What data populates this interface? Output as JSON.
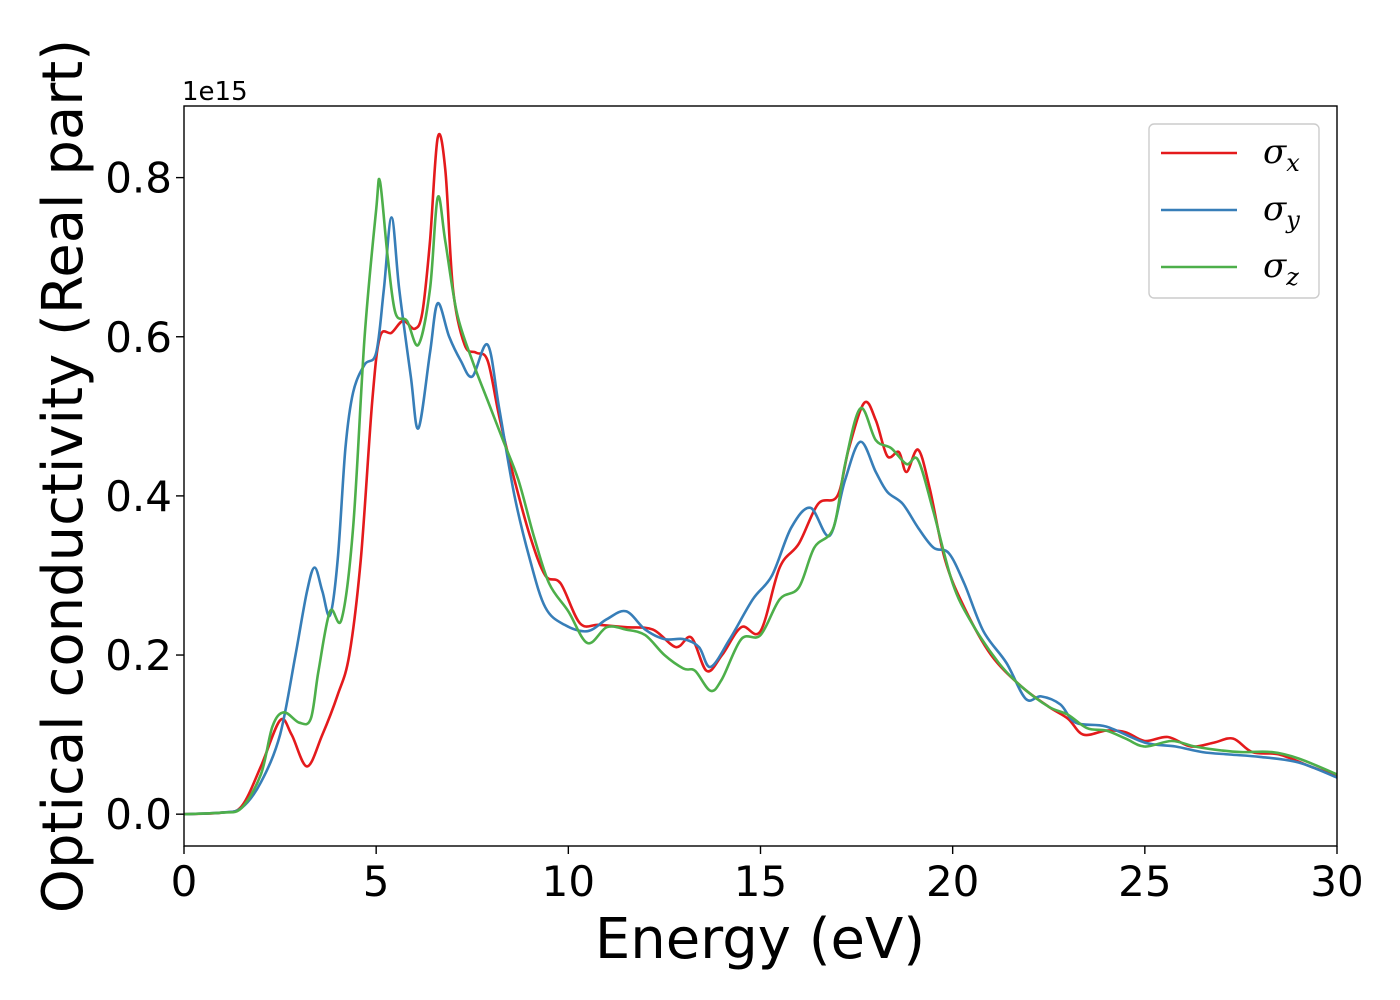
{
  "chart_data": {
    "type": "line",
    "xlabel": "Energy (eV)",
    "ylabel": "Optical conductivity (Real part)",
    "y_offset_text": "1e15",
    "y_multiplier": 1000000000000000.0,
    "xlim": [
      0,
      30
    ],
    "ylim": [
      -0.04,
      0.89
    ],
    "x_ticks": [
      0,
      5,
      10,
      15,
      20,
      25,
      30
    ],
    "x_tick_labels": [
      "0",
      "5",
      "10",
      "15",
      "20",
      "25",
      "30"
    ],
    "y_ticks": [
      0.0,
      0.2,
      0.4,
      0.6,
      0.8
    ],
    "y_tick_labels": [
      "0.0",
      "0.2",
      "0.4",
      "0.6",
      "0.8"
    ],
    "grid": false,
    "legend_position": "top-right",
    "series": [
      {
        "name": "σx",
        "symbol": "σ",
        "subscript": "x",
        "color": "#e41a1c",
        "points": [
          [
            0,
            0
          ],
          [
            1,
            0.002
          ],
          [
            1.5,
            0.01
          ],
          [
            2,
            0.06
          ],
          [
            2.5,
            0.118
          ],
          [
            2.8,
            0.1
          ],
          [
            3.2,
            0.06
          ],
          [
            3.6,
            0.1
          ],
          [
            4,
            0.15
          ],
          [
            4.3,
            0.2
          ],
          [
            4.6,
            0.32
          ],
          [
            4.9,
            0.52
          ],
          [
            5.1,
            0.6
          ],
          [
            5.4,
            0.605
          ],
          [
            5.7,
            0.62
          ],
          [
            6.0,
            0.61
          ],
          [
            6.2,
            0.63
          ],
          [
            6.4,
            0.72
          ],
          [
            6.6,
            0.85
          ],
          [
            6.8,
            0.81
          ],
          [
            7.0,
            0.66
          ],
          [
            7.3,
            0.59
          ],
          [
            7.6,
            0.58
          ],
          [
            7.9,
            0.57
          ],
          [
            8.2,
            0.5
          ],
          [
            8.6,
            0.42
          ],
          [
            9.0,
            0.35
          ],
          [
            9.4,
            0.3
          ],
          [
            9.8,
            0.29
          ],
          [
            10.3,
            0.24
          ],
          [
            10.8,
            0.238
          ],
          [
            11.5,
            0.235
          ],
          [
            12.2,
            0.232
          ],
          [
            12.8,
            0.21
          ],
          [
            13.2,
            0.222
          ],
          [
            13.6,
            0.18
          ],
          [
            14.0,
            0.2
          ],
          [
            14.5,
            0.235
          ],
          [
            15.0,
            0.23
          ],
          [
            15.5,
            0.31
          ],
          [
            16.0,
            0.34
          ],
          [
            16.5,
            0.39
          ],
          [
            17.0,
            0.4
          ],
          [
            17.3,
            0.46
          ],
          [
            17.7,
            0.517
          ],
          [
            18.0,
            0.495
          ],
          [
            18.3,
            0.45
          ],
          [
            18.6,
            0.455
          ],
          [
            18.8,
            0.43
          ],
          [
            19.1,
            0.458
          ],
          [
            19.4,
            0.41
          ],
          [
            19.8,
            0.32
          ],
          [
            20.3,
            0.26
          ],
          [
            21.0,
            0.2
          ],
          [
            21.8,
            0.16
          ],
          [
            22.5,
            0.135
          ],
          [
            23.0,
            0.12
          ],
          [
            23.4,
            0.1
          ],
          [
            24.0,
            0.105
          ],
          [
            24.5,
            0.103
          ],
          [
            25.0,
            0.092
          ],
          [
            25.6,
            0.097
          ],
          [
            26.2,
            0.085
          ],
          [
            26.8,
            0.09
          ],
          [
            27.3,
            0.095
          ],
          [
            27.8,
            0.078
          ],
          [
            28.5,
            0.075
          ],
          [
            29.3,
            0.06
          ],
          [
            30,
            0.048
          ]
        ]
      },
      {
        "name": "σy",
        "symbol": "σ",
        "subscript": "y",
        "color": "#377eb8",
        "points": [
          [
            0,
            0
          ],
          [
            1,
            0.002
          ],
          [
            1.5,
            0.008
          ],
          [
            2,
            0.04
          ],
          [
            2.5,
            0.1
          ],
          [
            2.9,
            0.2
          ],
          [
            3.2,
            0.28
          ],
          [
            3.4,
            0.31
          ],
          [
            3.6,
            0.28
          ],
          [
            3.8,
            0.25
          ],
          [
            4.0,
            0.32
          ],
          [
            4.2,
            0.46
          ],
          [
            4.4,
            0.53
          ],
          [
            4.7,
            0.565
          ],
          [
            5.0,
            0.58
          ],
          [
            5.2,
            0.66
          ],
          [
            5.4,
            0.75
          ],
          [
            5.6,
            0.66
          ],
          [
            5.9,
            0.55
          ],
          [
            6.1,
            0.485
          ],
          [
            6.4,
            0.58
          ],
          [
            6.6,
            0.642
          ],
          [
            6.9,
            0.6
          ],
          [
            7.2,
            0.57
          ],
          [
            7.5,
            0.55
          ],
          [
            7.9,
            0.59
          ],
          [
            8.2,
            0.51
          ],
          [
            8.6,
            0.4
          ],
          [
            9.0,
            0.32
          ],
          [
            9.4,
            0.26
          ],
          [
            9.9,
            0.238
          ],
          [
            10.5,
            0.23
          ],
          [
            11.0,
            0.245
          ],
          [
            11.5,
            0.255
          ],
          [
            12.0,
            0.232
          ],
          [
            12.5,
            0.22
          ],
          [
            13.0,
            0.22
          ],
          [
            13.4,
            0.21
          ],
          [
            13.7,
            0.185
          ],
          [
            14.2,
            0.22
          ],
          [
            14.8,
            0.27
          ],
          [
            15.3,
            0.3
          ],
          [
            15.8,
            0.36
          ],
          [
            16.3,
            0.385
          ],
          [
            16.8,
            0.35
          ],
          [
            17.2,
            0.42
          ],
          [
            17.6,
            0.468
          ],
          [
            18.0,
            0.43
          ],
          [
            18.3,
            0.405
          ],
          [
            18.7,
            0.39
          ],
          [
            19.1,
            0.36
          ],
          [
            19.5,
            0.335
          ],
          [
            19.9,
            0.328
          ],
          [
            20.3,
            0.29
          ],
          [
            20.8,
            0.23
          ],
          [
            21.4,
            0.19
          ],
          [
            21.9,
            0.145
          ],
          [
            22.3,
            0.148
          ],
          [
            22.8,
            0.138
          ],
          [
            23.2,
            0.115
          ],
          [
            24.0,
            0.11
          ],
          [
            25.0,
            0.09
          ],
          [
            25.8,
            0.085
          ],
          [
            26.5,
            0.078
          ],
          [
            27.2,
            0.075
          ],
          [
            28.0,
            0.072
          ],
          [
            29.0,
            0.065
          ],
          [
            30,
            0.046
          ]
        ]
      },
      {
        "name": "σz",
        "symbol": "σ",
        "subscript": "z",
        "color": "#4daf4a",
        "points": [
          [
            0,
            0
          ],
          [
            1,
            0.002
          ],
          [
            1.5,
            0.008
          ],
          [
            2,
            0.05
          ],
          [
            2.3,
            0.11
          ],
          [
            2.6,
            0.128
          ],
          [
            3.0,
            0.115
          ],
          [
            3.3,
            0.12
          ],
          [
            3.5,
            0.18
          ],
          [
            3.8,
            0.255
          ],
          [
            4.1,
            0.245
          ],
          [
            4.4,
            0.36
          ],
          [
            4.7,
            0.6
          ],
          [
            5.0,
            0.76
          ],
          [
            5.1,
            0.795
          ],
          [
            5.3,
            0.7
          ],
          [
            5.5,
            0.63
          ],
          [
            5.8,
            0.62
          ],
          [
            6.1,
            0.59
          ],
          [
            6.4,
            0.66
          ],
          [
            6.6,
            0.775
          ],
          [
            6.8,
            0.72
          ],
          [
            7.1,
            0.63
          ],
          [
            7.5,
            0.57
          ],
          [
            7.9,
            0.52
          ],
          [
            8.3,
            0.47
          ],
          [
            8.7,
            0.42
          ],
          [
            9.1,
            0.35
          ],
          [
            9.5,
            0.29
          ],
          [
            10.0,
            0.255
          ],
          [
            10.5,
            0.215
          ],
          [
            11.0,
            0.235
          ],
          [
            11.5,
            0.232
          ],
          [
            12.0,
            0.225
          ],
          [
            12.5,
            0.2
          ],
          [
            13.0,
            0.183
          ],
          [
            13.3,
            0.18
          ],
          [
            13.7,
            0.155
          ],
          [
            14.0,
            0.17
          ],
          [
            14.5,
            0.22
          ],
          [
            15.0,
            0.225
          ],
          [
            15.5,
            0.27
          ],
          [
            16.0,
            0.285
          ],
          [
            16.4,
            0.335
          ],
          [
            16.9,
            0.36
          ],
          [
            17.2,
            0.44
          ],
          [
            17.6,
            0.51
          ],
          [
            18.0,
            0.47
          ],
          [
            18.4,
            0.46
          ],
          [
            18.8,
            0.44
          ],
          [
            19.1,
            0.445
          ],
          [
            19.5,
            0.38
          ],
          [
            20.0,
            0.29
          ],
          [
            20.5,
            0.24
          ],
          [
            21.2,
            0.19
          ],
          [
            21.8,
            0.16
          ],
          [
            22.5,
            0.135
          ],
          [
            23.0,
            0.125
          ],
          [
            23.5,
            0.108
          ],
          [
            24.0,
            0.105
          ],
          [
            24.5,
            0.095
          ],
          [
            25.0,
            0.085
          ],
          [
            25.7,
            0.092
          ],
          [
            26.3,
            0.085
          ],
          [
            27.0,
            0.08
          ],
          [
            27.5,
            0.078
          ],
          [
            28.3,
            0.078
          ],
          [
            29.0,
            0.07
          ],
          [
            30,
            0.05
          ]
        ]
      }
    ]
  }
}
